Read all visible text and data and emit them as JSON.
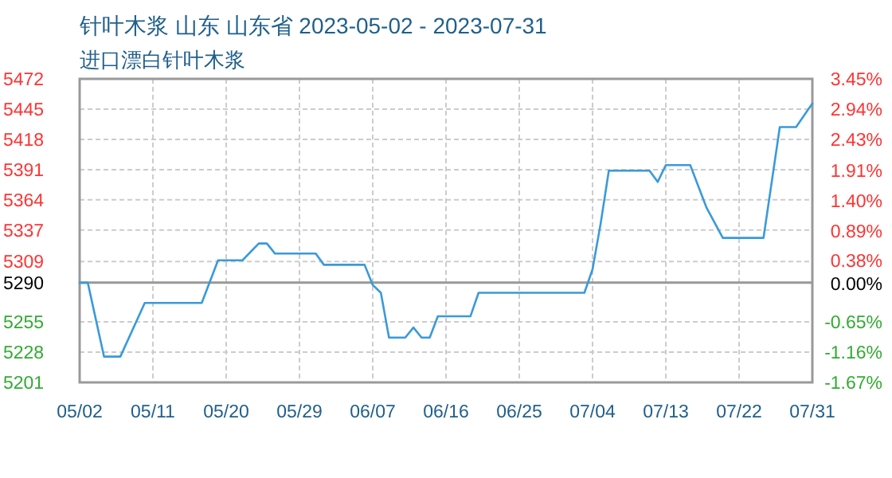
{
  "chart_data": {
    "type": "line",
    "title": "针叶木浆 山东 山东省 2023-05-02 - 2023-07-31",
    "subtitle": "进口漂白针叶木浆",
    "x": [
      "--05-02",
      "--05-03",
      "--05-05",
      "--05-07",
      "--05-10",
      "--05-17",
      "--05-19",
      "--05-22",
      "--05-24",
      "--05-25",
      "--05-26",
      "--05-31",
      "--06-01",
      "--06-06",
      "--06-07",
      "--06-08",
      "--06-09",
      "--06-11",
      "--06-12",
      "--06-13",
      "--06-14",
      "--06-15",
      "--06-19",
      "--06-20",
      "--07-03",
      "--07-04",
      "--07-05",
      "--07-06",
      "--07-11",
      "--07-12",
      "--07-13",
      "--07-16",
      "--07-18",
      "--07-20",
      "--07-25",
      "--07-27",
      "--07-29",
      "--07-31"
    ],
    "series": [
      {
        "color": "#3a9ad9",
        "values": [
          5290,
          5290,
          5224,
          5224,
          5272,
          5272,
          5310,
          5310,
          5325,
          5325,
          5316,
          5316,
          5306,
          5306,
          5288,
          5281,
          5241,
          5241,
          5250,
          5241,
          5241,
          5260,
          5260,
          5281,
          5281,
          5302,
          5343,
          5390,
          5390,
          5380,
          5395,
          5395,
          5357,
          5330,
          5330,
          5429,
          5429,
          5450
        ]
      }
    ],
    "xlim": [
      "--05-02",
      "--07-31"
    ],
    "xticks": [
      {
        "value": "--05-02",
        "label": "05/02"
      },
      {
        "value": "--05-11",
        "label": "05/11"
      },
      {
        "value": "--05-20",
        "label": "05/20"
      },
      {
        "value": "--05-29",
        "label": "05/29"
      },
      {
        "value": "--06-07",
        "label": "06/07"
      },
      {
        "value": "--06-16",
        "label": "06/16"
      },
      {
        "value": "--06-25",
        "label": "06/25"
      },
      {
        "value": "--07-04",
        "label": "07/04"
      },
      {
        "value": "--07-13",
        "label": "07/13"
      },
      {
        "value": "--07-22",
        "label": "07/22"
      },
      {
        "value": "--07-31",
        "label": "07/31"
      }
    ],
    "ylim": [
      5201,
      5472
    ],
    "yticks": [
      5201,
      5228,
      5255,
      5290,
      5309,
      5337,
      5364,
      5391,
      5418,
      5445,
      5472
    ],
    "y2lim": [
      -1.67,
      3.45
    ],
    "y2ticks": [
      {
        "value": -1.67,
        "label": "-1.67%"
      },
      {
        "value": -1.16,
        "label": "-1.16%"
      },
      {
        "value": -0.65,
        "label": "-0.65%"
      },
      {
        "value": 0,
        "label": "0.00%"
      },
      {
        "value": 0.38,
        "label": "0.38%"
      },
      {
        "value": 0.89,
        "label": "0.89%"
      },
      {
        "value": 1.4,
        "label": "1.40%"
      },
      {
        "value": 1.91,
        "label": "1.91%"
      },
      {
        "value": 2.43,
        "label": "2.43%"
      },
      {
        "value": 2.94,
        "label": "2.94%"
      },
      {
        "value": 3.45,
        "label": "3.45%"
      }
    ],
    "ref_lines": [
      {
        "axis": "y",
        "value": 5290,
        "color": "#999999"
      }
    ],
    "grid": true,
    "marker": "none",
    "line_style": "solid"
  }
}
